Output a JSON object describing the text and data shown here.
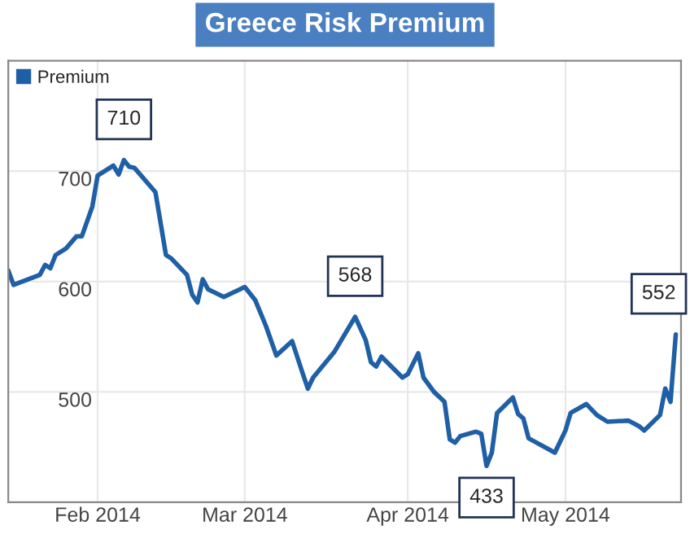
{
  "chart_data": {
    "type": "line",
    "title": "Greece Risk Premium",
    "x": [
      "2014-01-15",
      "2014-01-16",
      "2014-01-21",
      "2014-01-22",
      "2014-01-23",
      "2014-01-24",
      "2014-01-26",
      "2014-01-28",
      "2014-01-29",
      "2014-01-31",
      "2014-02-01",
      "2014-02-04",
      "2014-02-05",
      "2014-02-06",
      "2014-02-07",
      "2014-02-08",
      "2014-02-12",
      "2014-02-14",
      "2014-02-15",
      "2014-02-18",
      "2014-02-19",
      "2014-02-20",
      "2014-02-21",
      "2014-02-22",
      "2014-02-25",
      "2014-03-01",
      "2014-03-03",
      "2014-03-05",
      "2014-03-07",
      "2014-03-10",
      "2014-03-12",
      "2014-03-13",
      "2014-03-14",
      "2014-03-18",
      "2014-03-22",
      "2014-03-24",
      "2014-03-25",
      "2014-03-26",
      "2014-03-27",
      "2014-03-31",
      "2014-04-01",
      "2014-04-03",
      "2014-04-04",
      "2014-04-06",
      "2014-04-08",
      "2014-04-09",
      "2014-04-10",
      "2014-04-11",
      "2014-04-14",
      "2014-04-15",
      "2014-04-16",
      "2014-04-17",
      "2014-04-18",
      "2014-04-21",
      "2014-04-22",
      "2014-04-23",
      "2014-04-24",
      "2014-04-29",
      "2014-05-01",
      "2014-05-02",
      "2014-05-05",
      "2014-05-07",
      "2014-05-09",
      "2014-05-13",
      "2014-05-15",
      "2014-05-16",
      "2014-05-19",
      "2014-05-20",
      "2014-05-21",
      "2014-05-22"
    ],
    "series": [
      {
        "name": "Premium",
        "color": "#1f5fa6",
        "values": [
          610,
          597,
          606,
          615,
          612,
          624,
          630,
          641,
          641,
          668,
          696,
          705,
          697,
          710,
          704,
          703,
          681,
          624,
          621,
          606,
          588,
          581,
          602,
          593,
          586,
          595,
          583,
          560,
          533,
          546,
          517,
          503,
          513,
          536,
          568,
          547,
          527,
          523,
          532,
          513,
          516,
          535,
          513,
          500,
          491,
          457,
          454,
          460,
          464,
          462,
          433,
          445,
          481,
          495,
          480,
          476,
          458,
          445,
          465,
          481,
          489,
          479,
          473,
          474,
          469,
          465,
          479,
          503,
          491,
          552
        ]
      }
    ],
    "xlim": [
      "2014-01-15",
      "2014-05-23"
    ],
    "xticks": [
      {
        "value": "2014-02-01",
        "label": "Feb 2014"
      },
      {
        "value": "2014-03-01",
        "label": "Mar 2014"
      },
      {
        "value": "2014-04-01",
        "label": "Apr 2014"
      },
      {
        "value": "2014-05-01",
        "label": "May 2014"
      }
    ],
    "ylim": [
      400,
      800
    ],
    "yticks": [
      500,
      600,
      700
    ],
    "annotations": [
      {
        "text": "710",
        "x": "2014-02-06",
        "y": 710
      },
      {
        "text": "568",
        "x": "2014-03-22",
        "y": 568
      },
      {
        "text": "433",
        "x": "2014-04-16",
        "y": 433
      },
      {
        "text": "552",
        "x": "2014-05-22",
        "y": 552
      }
    ],
    "grid": true,
    "legend": "top left"
  }
}
